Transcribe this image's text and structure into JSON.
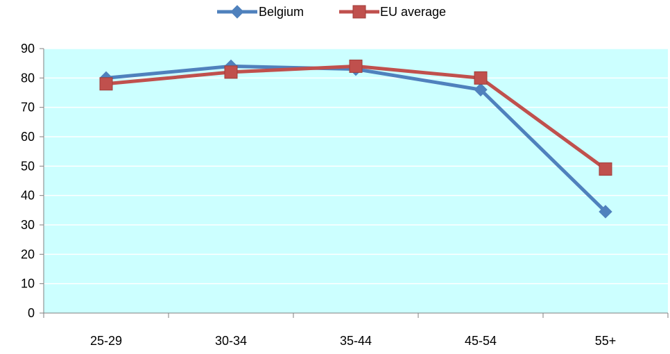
{
  "chart_data": {
    "type": "line",
    "title": "",
    "xlabel": "",
    "ylabel": "",
    "categories": [
      "25-29",
      "30-34",
      "35-44",
      "45-54",
      "55+"
    ],
    "ylim": [
      0,
      90
    ],
    "yticks": [
      "0",
      "10",
      "20",
      "30",
      "40",
      "50",
      "60",
      "70",
      "80",
      "90"
    ],
    "grid": true,
    "legend_position": "top-center",
    "plot_background": "#ccffff",
    "series": [
      {
        "name": "Belgium",
        "values": [
          80,
          84,
          83,
          76,
          34.5
        ],
        "color": "#4f81bd",
        "marker": "diamond"
      },
      {
        "name": "EU average",
        "values": [
          78,
          82,
          84,
          80,
          49
        ],
        "color": "#c0504d",
        "marker": "square"
      }
    ]
  }
}
